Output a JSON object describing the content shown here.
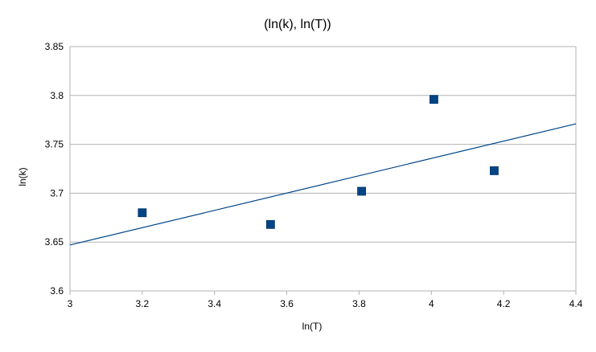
{
  "chart_data": {
    "type": "scatter",
    "title": "(ln(k), ln(T))",
    "xlabel": "ln(T)",
    "ylabel": "ln(k)",
    "xlim": [
      3,
      4.4
    ],
    "ylim": [
      3.6,
      3.85
    ],
    "xticks": [
      3,
      3.2,
      3.4,
      3.6,
      3.8,
      4,
      4.2,
      4.4
    ],
    "xtick_labels": [
      "3",
      "3.2",
      "3.4",
      "3.6",
      "3.8",
      "4",
      "4.2",
      "4.4"
    ],
    "yticks": [
      3.6,
      3.65,
      3.7,
      3.75,
      3.8,
      3.85
    ],
    "ytick_labels": [
      "3.6",
      "3.65",
      "3.7",
      "3.75",
      "3.8",
      "3.85"
    ],
    "grid": "horizontal",
    "legend": "none",
    "series": [
      {
        "marker": "square",
        "color": "#004586",
        "x": [
          3.2,
          3.555,
          3.807,
          4.007,
          4.174
        ],
        "y": [
          3.68,
          3.668,
          3.702,
          3.796,
          3.723
        ]
      }
    ],
    "trendline": {
      "type": "linear",
      "color": "#004586",
      "x": [
        3.0,
        4.4
      ],
      "y": [
        3.647,
        3.771
      ]
    }
  }
}
